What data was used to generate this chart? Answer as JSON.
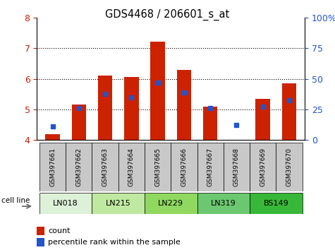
{
  "title": "GDS4468 / 206601_s_at",
  "samples": [
    "GSM397661",
    "GSM397662",
    "GSM397663",
    "GSM397664",
    "GSM397665",
    "GSM397666",
    "GSM397667",
    "GSM397668",
    "GSM397669",
    "GSM397670"
  ],
  "count_values": [
    4.2,
    5.15,
    6.1,
    6.05,
    7.2,
    6.3,
    5.1,
    4.0,
    5.35,
    5.85
  ],
  "percentile_values": [
    4.45,
    5.05,
    5.5,
    5.4,
    5.88,
    5.55,
    5.05,
    4.48,
    5.1,
    5.3
  ],
  "ylim_left": [
    4.0,
    8.0
  ],
  "yticks_left": [
    4,
    5,
    6,
    7,
    8
  ],
  "yticks_right": [
    0,
    25,
    50,
    75,
    100
  ],
  "ylim_right": [
    0,
    100
  ],
  "bar_color": "#cc2200",
  "dot_color": "#2255cc",
  "cell_lines": [
    "LN018",
    "LN215",
    "LN229",
    "LN319",
    "BS149"
  ],
  "cell_line_spans": [
    [
      0,
      1
    ],
    [
      2,
      3
    ],
    [
      4,
      5
    ],
    [
      6,
      7
    ],
    [
      8,
      9
    ]
  ],
  "cell_line_colors": [
    "#ddf0d8",
    "#bfe8a0",
    "#90d860",
    "#6cc870",
    "#38b838"
  ],
  "label_count": "count",
  "label_percentile": "percentile rank within the sample"
}
